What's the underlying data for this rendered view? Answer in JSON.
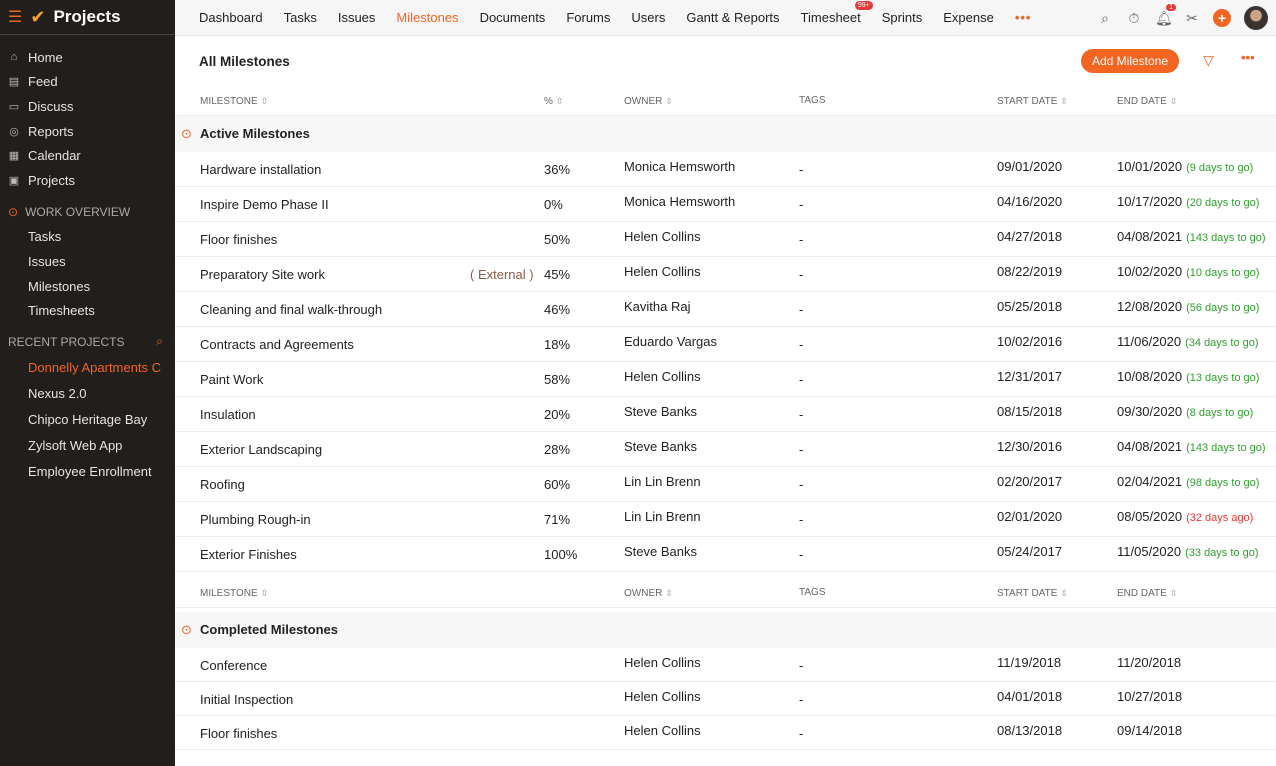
{
  "app": {
    "title": "Projects"
  },
  "sidebar": {
    "nav": [
      {
        "label": "Home",
        "icon": "home-icon"
      },
      {
        "label": "Feed",
        "icon": "feed-icon"
      },
      {
        "label": "Discuss",
        "icon": "discuss-icon"
      },
      {
        "label": "Reports",
        "icon": "reports-icon"
      },
      {
        "label": "Calendar",
        "icon": "calendar-icon"
      },
      {
        "label": "Projects",
        "icon": "projects-icon"
      }
    ],
    "work_overview": {
      "label": "WORK OVERVIEW",
      "items": [
        "Tasks",
        "Issues",
        "Milestones",
        "Timesheets"
      ]
    },
    "recent": {
      "label": "RECENT PROJECTS",
      "items": [
        "Donnelly Apartments C",
        "Nexus 2.0",
        "Chipco Heritage Bay",
        "Zylsoft Web App",
        "Employee Enrollment"
      ]
    }
  },
  "topnav": {
    "tabs": [
      "Dashboard",
      "Tasks",
      "Issues",
      "Milestones",
      "Documents",
      "Forums",
      "Users",
      "Gantt & Reports",
      "Timesheet",
      "Sprints",
      "Expense"
    ],
    "active": "Milestones",
    "timesheet_badge": "99+",
    "more": "•••",
    "notif_count": "1"
  },
  "page": {
    "title": "All Milestones",
    "add_button": "Add Milestone",
    "more": "•••"
  },
  "columns": {
    "milestone": "MILESTONE",
    "percent": "%",
    "owner": "OWNER",
    "tags": "TAGS",
    "start": "START DATE",
    "end": "END DATE"
  },
  "active": {
    "label": "Active Milestones",
    "rows": [
      {
        "name": "Hardware installation",
        "pct": "36%",
        "owner": "Monica Hemsworth",
        "tags": "-",
        "start": "09/01/2020",
        "end": "10/01/2020",
        "status": "(9 days to go)",
        "overdue": false
      },
      {
        "name": "Inspire Demo Phase II",
        "pct": "0%",
        "owner": "Monica Hemsworth",
        "tags": "-",
        "start": "04/16/2020",
        "end": "10/17/2020",
        "status": "(20 days to go)",
        "overdue": false
      },
      {
        "name": "Floor finishes",
        "pct": "50%",
        "owner": "Helen Collins",
        "tags": "-",
        "start": "04/27/2018",
        "end": "04/08/2021",
        "status": "(143 days to go)",
        "overdue": false
      },
      {
        "name": "Preparatory Site work",
        "ext": "( External )",
        "pct": "45%",
        "owner": "Helen Collins",
        "tags": "-",
        "start": "08/22/2019",
        "end": "10/02/2020",
        "status": "(10 days to go)",
        "overdue": false
      },
      {
        "name": "Cleaning and final walk-through",
        "pct": "46%",
        "owner": "Kavitha Raj",
        "tags": "-",
        "start": "05/25/2018",
        "end": "12/08/2020",
        "status": "(56 days to go)",
        "overdue": false
      },
      {
        "name": "Contracts and Agreements",
        "pct": "18%",
        "owner": "Eduardo Vargas",
        "tags": "-",
        "start": "10/02/2016",
        "end": "11/06/2020",
        "status": "(34 days to go)",
        "overdue": false
      },
      {
        "name": "Paint Work",
        "pct": "58%",
        "owner": "Helen Collins",
        "tags": "-",
        "start": "12/31/2017",
        "end": "10/08/2020",
        "status": "(13 days to go)",
        "overdue": false
      },
      {
        "name": "Insulation",
        "pct": "20%",
        "owner": "Steve Banks",
        "tags": "-",
        "start": "08/15/2018",
        "end": "09/30/2020",
        "status": "(8 days to go)",
        "overdue": false
      },
      {
        "name": "Exterior Landscaping",
        "pct": "28%",
        "owner": "Steve Banks",
        "tags": "-",
        "start": "12/30/2016",
        "end": "04/08/2021",
        "status": "(143 days to go)",
        "overdue": false
      },
      {
        "name": "Roofing",
        "pct": "60%",
        "owner": "Lin Lin Brenn",
        "tags": "-",
        "start": "02/20/2017",
        "end": "02/04/2021",
        "status": "(98 days to go)",
        "overdue": false
      },
      {
        "name": "Plumbing Rough-in",
        "pct": "71%",
        "owner": "Lin Lin Brenn",
        "tags": "-",
        "start": "02/01/2020",
        "end": "08/05/2020",
        "status": "(32 days ago)",
        "overdue": true
      },
      {
        "name": "Exterior Finishes",
        "pct": "100%",
        "owner": "Steve Banks",
        "tags": "-",
        "start": "05/24/2017",
        "end": "11/05/2020",
        "status": "(33 days to go)",
        "overdue": false
      }
    ]
  },
  "completed": {
    "label": "Completed Milestones",
    "rows": [
      {
        "name": "Conference",
        "owner": "Helen Collins",
        "tags": "-",
        "start": "11/19/2018",
        "end": "11/20/2018"
      },
      {
        "name": "Initial Inspection",
        "owner": "Helen Collins",
        "tags": "-",
        "start": "04/01/2018",
        "end": "10/27/2018"
      },
      {
        "name": "Floor finishes",
        "owner": "Helen Collins",
        "tags": "-",
        "start": "08/13/2018",
        "end": "09/14/2018"
      }
    ]
  },
  "colors": {
    "accent": "#f26522",
    "sidebar": "#221e1c",
    "go": "#2e9e2e",
    "overdue": "#e53935"
  }
}
